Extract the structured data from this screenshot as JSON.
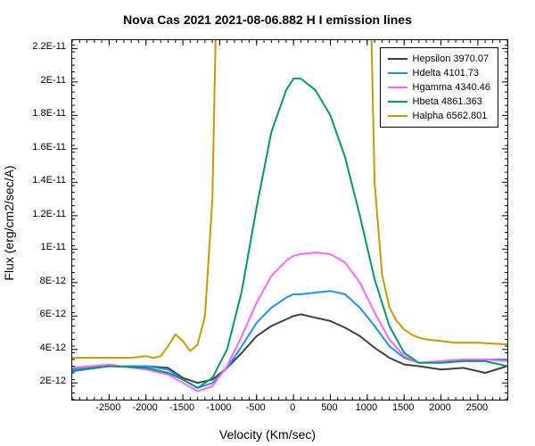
{
  "chart": {
    "type": "line",
    "title": "Nova Cas 2021   2021-08-06.882  H I emission lines",
    "title_fontsize": 14,
    "xlabel": "Velocity (Km/sec)",
    "ylabel": "Flux (erg/cm2/sec/A)",
    "label_fontsize": 14,
    "tick_fontsize": 11,
    "background_color": "#ffffff",
    "plot_bg": "#ffffff",
    "axis_color": "#000000",
    "tick_color": "#000000",
    "xlim": [
      -3000,
      2900
    ],
    "ylim": [
      1e-12,
      2.25e-11
    ],
    "xticks": [
      -2500,
      -2000,
      -1500,
      -1000,
      -500,
      0,
      500,
      1000,
      1500,
      2000,
      2500
    ],
    "yticks": [
      2e-12,
      4e-12,
      6e-12,
      8e-12,
      1e-11,
      1.2e-11,
      1.4e-11,
      1.6e-11,
      1.8e-11,
      2e-11,
      2.2e-11
    ],
    "ytick_labels": [
      "2E-12",
      "4E-12",
      "6E-12",
      "8E-12",
      "1E-11",
      "1.2E-11",
      "1.4E-11",
      "1.6E-11",
      "1.8E-11",
      "2E-11",
      "2.2E-11"
    ],
    "minor_tick_count_x": 4,
    "minor_tick_count_y": 4,
    "legend": {
      "position": "upper-right",
      "items": [
        {
          "label": "Hepsilon  3970.07",
          "color": "#404040"
        },
        {
          "label": "Hdelta  4101.73",
          "color": "#1f8fff"
        },
        {
          "label": "Hgamma  4340.46",
          "color": "#ff66ff"
        },
        {
          "label": "Hbeta  4861.363",
          "color": "#009966"
        },
        {
          "label": "Halpha  6562.801",
          "color": "#c99a00"
        }
      ]
    },
    "series": [
      {
        "name": "Hepsilon",
        "color": "#404040",
        "width": 2,
        "x": [
          -3000,
          -2500,
          -2000,
          -1700,
          -1500,
          -1300,
          -1100,
          -900,
          -700,
          -500,
          -300,
          -100,
          0,
          100,
          300,
          500,
          700,
          900,
          1100,
          1300,
          1500,
          1700,
          2000,
          2300,
          2600,
          2900
        ],
        "y": [
          2.9e-12,
          3e-12,
          3e-12,
          2.9e-12,
          2.3e-12,
          2e-12,
          2.2e-12,
          2.9e-12,
          3.8e-12,
          4.8e-12,
          5.4e-12,
          5.8e-12,
          6e-12,
          6.1e-12,
          5.9e-12,
          5.7e-12,
          5.3e-12,
          4.8e-12,
          4.1e-12,
          3.5e-12,
          3.1e-12,
          3e-12,
          2.8e-12,
          2.9e-12,
          2.6e-12,
          3e-12
        ]
      },
      {
        "name": "Hdelta",
        "color": "#1f8fff",
        "width": 2,
        "x": [
          -3000,
          -2500,
          -2000,
          -1700,
          -1500,
          -1300,
          -1100,
          -900,
          -700,
          -500,
          -300,
          -100,
          0,
          100,
          300,
          500,
          700,
          900,
          1100,
          1300,
          1500,
          1700,
          2000,
          2300,
          2600,
          2900
        ],
        "y": [
          2.8e-12,
          3e-12,
          3e-12,
          2.8e-12,
          2.2e-12,
          1.7e-12,
          2e-12,
          2.9e-12,
          4.2e-12,
          5.6e-12,
          6.5e-12,
          7.1e-12,
          7.3e-12,
          7.3e-12,
          7.4e-12,
          7.5e-12,
          7.3e-12,
          6.5e-12,
          5.4e-12,
          4.2e-12,
          3.5e-12,
          3.2e-12,
          3.3e-12,
          3.4e-12,
          3.4e-12,
          3.4e-12
        ]
      },
      {
        "name": "Hgamma",
        "color": "#ff66ff",
        "width": 2,
        "x": [
          -3000,
          -2500,
          -2000,
          -1700,
          -1500,
          -1300,
          -1100,
          -900,
          -700,
          -500,
          -300,
          -100,
          0,
          100,
          300,
          500,
          700,
          900,
          1100,
          1300,
          1500,
          1700,
          2000,
          2300,
          2600,
          2900
        ],
        "y": [
          2.9e-12,
          3.1e-12,
          2.8e-12,
          2.5e-12,
          2e-12,
          1.5e-12,
          1.8e-12,
          3e-12,
          4.8e-12,
          6.8e-12,
          8.4e-12,
          9.3e-12,
          9.6e-12,
          9.7e-12,
          9.8e-12,
          9.7e-12,
          9.2e-12,
          8e-12,
          6.2e-12,
          4.6e-12,
          3.6e-12,
          3.2e-12,
          3.3e-12,
          3.4e-12,
          3.4e-12,
          3.3e-12
        ]
      },
      {
        "name": "Hbeta",
        "color": "#009966",
        "width": 2,
        "x": [
          -3000,
          -2500,
          -2000,
          -1700,
          -1500,
          -1300,
          -1100,
          -900,
          -700,
          -500,
          -300,
          -100,
          0,
          100,
          300,
          500,
          700,
          900,
          1100,
          1300,
          1500,
          1700,
          2000,
          2300,
          2600,
          2900
        ],
        "y": [
          2.7e-12,
          3e-12,
          2.9e-12,
          2.6e-12,
          2.2e-12,
          1.7e-12,
          2.3e-12,
          4e-12,
          7.5e-12,
          1.25e-11,
          1.7e-11,
          1.95e-11,
          2.02e-11,
          2.02e-11,
          1.95e-11,
          1.8e-11,
          1.55e-11,
          1.2e-11,
          8.2e-12,
          5.4e-12,
          3.8e-12,
          3.2e-12,
          3.2e-12,
          3.3e-12,
          3.3e-12,
          3e-12
        ]
      },
      {
        "name": "Halpha",
        "color": "#c99a00",
        "width": 2,
        "x": [
          -3000,
          -2500,
          -2200,
          -2000,
          -1900,
          -1800,
          -1700,
          -1600,
          -1500,
          -1400,
          -1300,
          -1200,
          -1100,
          -1050,
          1050,
          1100,
          1200,
          1300,
          1400,
          1500,
          1600,
          1700,
          1800,
          2000,
          2200,
          2500,
          2900
        ],
        "y": [
          3.5e-12,
          3.5e-12,
          3.5e-12,
          3.6e-12,
          3.5e-12,
          3.6e-12,
          4.2e-12,
          4.9e-12,
          4.5e-12,
          3.9e-12,
          4.3e-12,
          6e-12,
          1.3e-11,
          2.4e-11,
          2.4e-11,
          1.4e-11,
          8.5e-12,
          6.5e-12,
          5.7e-12,
          5.2e-12,
          4.9e-12,
          4.7e-12,
          4.6e-12,
          4.5e-12,
          4.4e-12,
          4.4e-12,
          4.3e-12
        ]
      }
    ]
  }
}
